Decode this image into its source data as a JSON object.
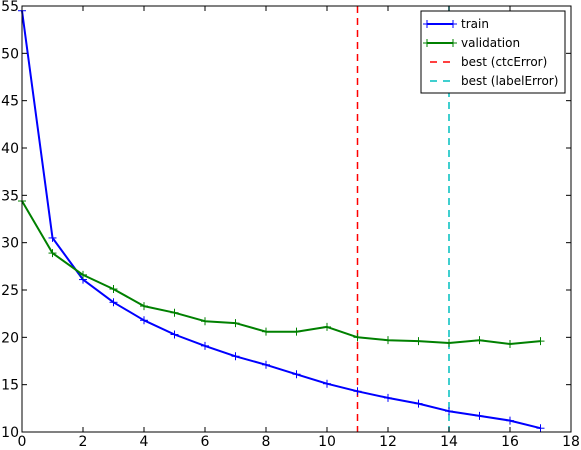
{
  "chart_data": {
    "type": "line",
    "title": "",
    "xlabel": "",
    "ylabel": "",
    "xlim": [
      0,
      18
    ],
    "ylim": [
      10,
      55
    ],
    "xticks": [
      0,
      2,
      4,
      6,
      8,
      10,
      12,
      14,
      16,
      18
    ],
    "yticks": [
      10,
      15,
      20,
      25,
      30,
      35,
      40,
      45,
      50,
      55
    ],
    "grid": false,
    "legend_position": "top-right",
    "series": [
      {
        "name": "train",
        "color": "#0000ff",
        "marker": "+",
        "x": [
          0,
          1,
          2,
          3,
          4,
          5,
          6,
          7,
          8,
          9,
          10,
          11,
          12,
          13,
          14,
          15,
          16,
          17
        ],
        "y": [
          54.5,
          30.5,
          26.1,
          23.7,
          21.8,
          20.3,
          19.1,
          18.0,
          17.1,
          16.1,
          15.1,
          14.3,
          13.6,
          13.0,
          12.2,
          11.7,
          11.2,
          10.4
        ]
      },
      {
        "name": "validation",
        "color": "#008000",
        "marker": "+",
        "x": [
          0,
          1,
          2,
          3,
          4,
          5,
          6,
          7,
          8,
          9,
          10,
          11,
          12,
          13,
          14,
          15,
          16,
          17
        ],
        "y": [
          34.4,
          28.9,
          26.6,
          25.1,
          23.3,
          22.6,
          21.7,
          21.5,
          20.6,
          20.6,
          21.1,
          20.0,
          19.7,
          19.6,
          19.4,
          19.7,
          19.3,
          19.6
        ]
      }
    ],
    "vlines": [
      {
        "name": "best (ctcError)",
        "x": 11,
        "color": "#ff0000",
        "style": "dashed"
      },
      {
        "name": "best (labelError)",
        "x": 14,
        "color": "#00bfbf",
        "style": "dashed"
      }
    ]
  }
}
